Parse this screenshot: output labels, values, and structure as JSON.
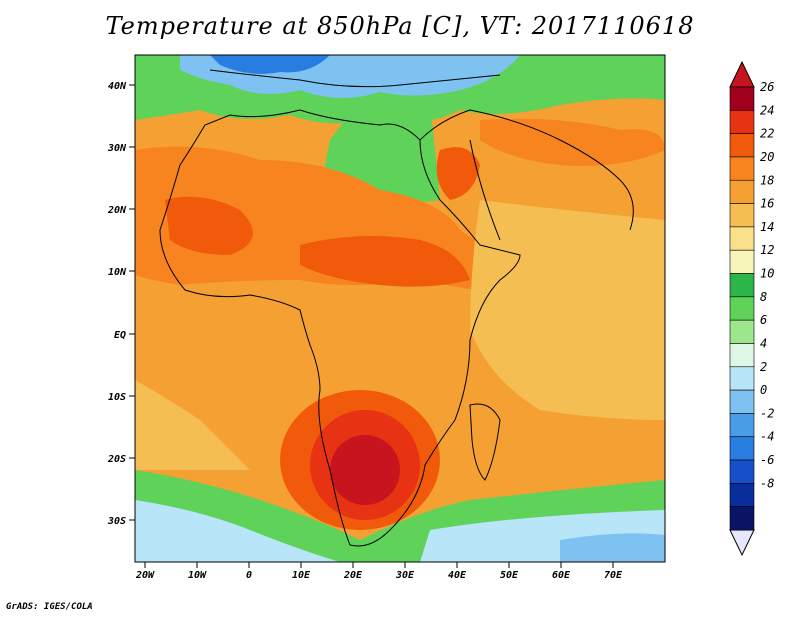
{
  "title": "Temperature at 850hPa [C], VT: 2017110618",
  "credit": "GrADS: IGES/COLA",
  "axes": {
    "lat_labels": [
      "40N",
      "30N",
      "20N",
      "10N",
      "EQ",
      "10S",
      "20S",
      "30S"
    ],
    "lon_labels": [
      "20W",
      "10W",
      "0",
      "10E",
      "20E",
      "30E",
      "40E",
      "50E",
      "60E",
      "70E"
    ]
  },
  "colorbar": {
    "labels": [
      "26",
      "24",
      "22",
      "20",
      "18",
      "16",
      "14",
      "12",
      "10",
      "8",
      "6",
      "4",
      "2",
      "0",
      "-2",
      "-4",
      "-6",
      "-8"
    ],
    "colors": [
      "#a0001e",
      "#e83214",
      "#f05a0a",
      "#f7841e",
      "#f5a033",
      "#f5be52",
      "#fae08a",
      "#f8f5b8",
      "#2db54a",
      "#5fd25a",
      "#9ee68c",
      "#dff7e5",
      "#b8e5f7",
      "#7dc2f0",
      "#4a9ee8",
      "#2a7de0",
      "#1650c8",
      "#0a2d9c",
      "#0a1464"
    ],
    "arrow_top_color": "#c8141e",
    "arrow_bottom_color": "#e6e6ff"
  },
  "chart_data": {
    "type": "heatmap",
    "title": "Temperature at 850hPa [C], VT: 2017110618",
    "variable": "Temperature at 850hPa",
    "units": "C",
    "valid_time": "2017110618",
    "lon_range": [
      -22,
      80
    ],
    "lat_range": [
      -37,
      45
    ],
    "x_ticks": [
      "20W",
      "10W",
      "0",
      "10E",
      "20E",
      "30E",
      "40E",
      "50E",
      "60E",
      "70E"
    ],
    "y_ticks": [
      "40N",
      "30N",
      "20N",
      "10N",
      "EQ",
      "10S",
      "20S",
      "30S"
    ],
    "color_scale_levels": [
      -8,
      -6,
      -4,
      -2,
      0,
      2,
      4,
      6,
      8,
      10,
      12,
      14,
      16,
      18,
      20,
      22,
      24,
      26
    ]
  }
}
